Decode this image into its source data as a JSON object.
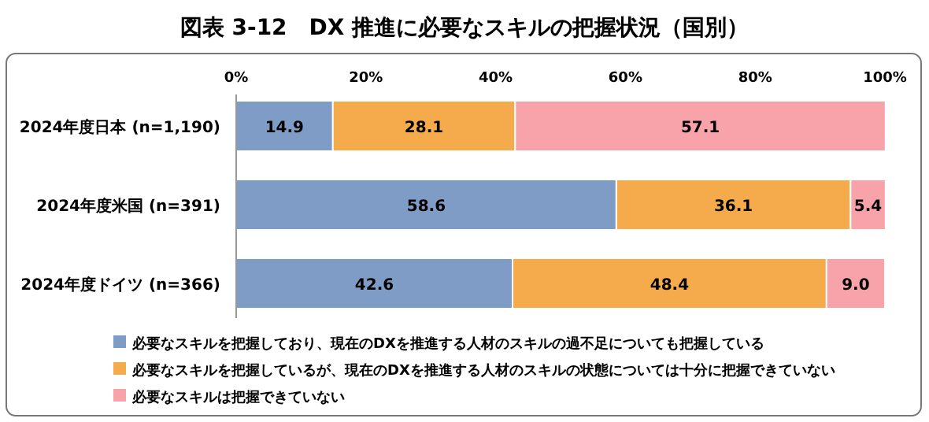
{
  "chart_data": {
    "type": "bar",
    "orientation": "horizontal",
    "stacked": true,
    "title": "図表 3-12　DX 推進に必要なスキルの把握状況（国別）",
    "categories": [
      "2024年度日本 (n=1,190)",
      "2024年度米国 (n=391)",
      "2024年度ドイツ (n=366)"
    ],
    "series": [
      {
        "name": "必要なスキルを把握しており、現在のDXを推進する人材のスキルの過不足についても把握している",
        "color": "#7f9cc6",
        "values": [
          14.9,
          58.6,
          42.6
        ],
        "value_labels": [
          "14.9",
          "58.6",
          "42.6"
        ]
      },
      {
        "name": "必要なスキルを把握しているが、現在のDXを推進する人材のスキルの状態については十分に把握できていない",
        "color": "#f5aa4c",
        "values": [
          28.1,
          36.1,
          48.4
        ],
        "value_labels": [
          "28.1",
          "36.1",
          "48.4"
        ]
      },
      {
        "name": "必要なスキルは把握できていない",
        "color": "#f8a2a9",
        "values": [
          57.1,
          5.4,
          9.0
        ],
        "value_labels": [
          "57.1",
          "5.4",
          "9.0"
        ]
      }
    ],
    "xlim": [
      0,
      100
    ],
    "xticks": [
      {
        "value": 0,
        "label": "0%"
      },
      {
        "value": 20,
        "label": "20%"
      },
      {
        "value": 40,
        "label": "40%"
      },
      {
        "value": 60,
        "label": "60%"
      },
      {
        "value": 80,
        "label": "80%"
      },
      {
        "value": 100,
        "label": "100%"
      }
    ],
    "legend": "bottom",
    "grid": false
  }
}
